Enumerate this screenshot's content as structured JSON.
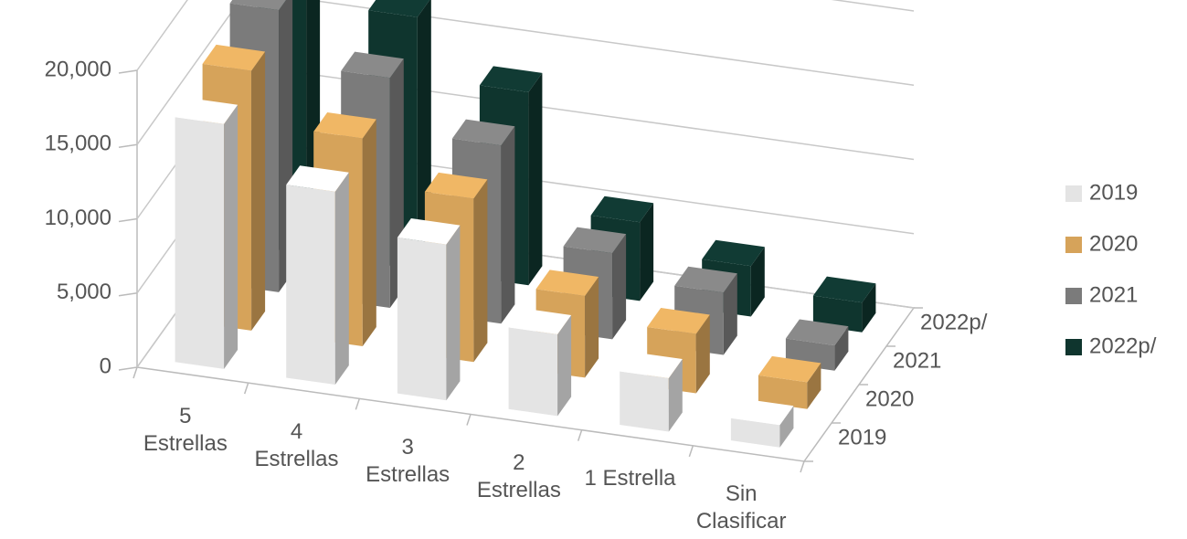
{
  "chart_data": {
    "type": "bar3d",
    "categories": [
      "5\nEstrellas",
      "4\nEstrellas",
      "3\nEstrellas",
      "2\nEstrellas",
      "1 Estrella",
      "Sin\nClasificar"
    ],
    "series": [
      {
        "name": "2019",
        "color": "#e4e4e4",
        "values": [
          16500,
          13000,
          10500,
          5500,
          3600,
          1500
        ]
      },
      {
        "name": "2020",
        "color": "#d6a35a",
        "values": [
          17500,
          14000,
          11000,
          5500,
          4000,
          1800
        ]
      },
      {
        "name": "2021",
        "color": "#7b7b7b",
        "values": [
          19000,
          15500,
          12000,
          5800,
          4200,
          1700
        ]
      },
      {
        "name": "2022p/",
        "color": "#0f352e",
        "values": [
          20000,
          17000,
          13000,
          5300,
          3400,
          2000
        ]
      }
    ],
    "ylim": [
      0,
      20000
    ],
    "yticks": [
      0,
      {
        "value": 5000,
        "label": "5,000"
      },
      {
        "value": 10000,
        "label": "10,000"
      },
      {
        "value": 15000,
        "label": "15,000"
      },
      {
        "value": 20000,
        "label": "20,000"
      }
    ],
    "grid": true,
    "legend": "right"
  }
}
